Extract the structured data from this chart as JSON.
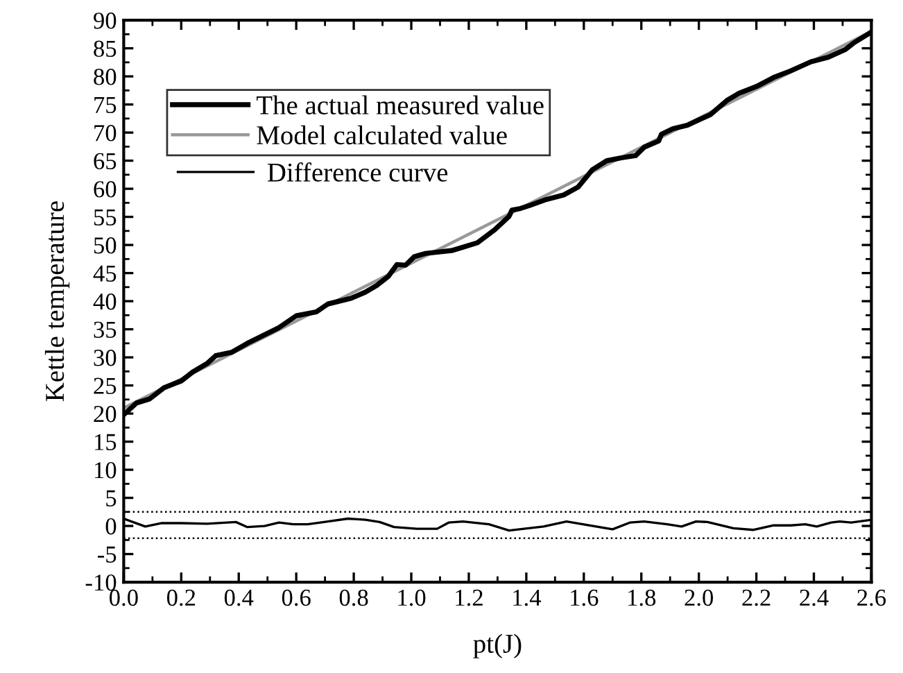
{
  "chart_data": {
    "type": "line",
    "xlabel": "pt(J)",
    "ylabel": "Kettle temperature",
    "xlim": [
      0,
      2.6
    ],
    "xticks": [
      {
        "value": 0,
        "label": "0.0"
      },
      {
        "value": 0.2,
        "label": "0.2"
      },
      {
        "value": 0.4,
        "label": "0.4"
      },
      {
        "value": 0.6,
        "label": "0.6"
      },
      {
        "value": 0.8,
        "label": "0.8"
      },
      {
        "value": 1.0,
        "label": "1.0"
      },
      {
        "value": 1.2,
        "label": "1.2"
      },
      {
        "value": 1.4,
        "label": "1.4"
      },
      {
        "value": 1.6,
        "label": "1.6"
      },
      {
        "value": 1.8,
        "label": "1.8"
      },
      {
        "value": 2.0,
        "label": "2.0"
      },
      {
        "value": 2.2,
        "label": "2.2"
      },
      {
        "value": 2.4,
        "label": "2.4"
      },
      {
        "value": 2.6,
        "label": "2.6"
      }
    ],
    "ylim": [
      -10,
      90
    ],
    "yticks": [
      -10,
      -5,
      0,
      5,
      10,
      15,
      20,
      25,
      30,
      35,
      40,
      45,
      50,
      55,
      60,
      65,
      70,
      75,
      80,
      85,
      90
    ],
    "grid": false,
    "legend": "top left",
    "marker": "none",
    "ref_lines": [
      {
        "axis": "y",
        "value": 2.5,
        "color": "#000000",
        "line_style": "dotted"
      },
      {
        "axis": "y",
        "value": -2.2,
        "color": "#000000",
        "line_style": "dotted"
      }
    ],
    "series": [
      {
        "name": "The actual measured value",
        "color": "#000000",
        "x": [
          0,
          0.045,
          0.09,
          0.14,
          0.2,
          0.24,
          0.29,
          0.32,
          0.375,
          0.43,
          0.54,
          0.6,
          0.67,
          0.71,
          0.79,
          0.84,
          0.88,
          0.92,
          0.95,
          0.98,
          1.01,
          1.05,
          1.14,
          1.18,
          1.23,
          1.29,
          1.34,
          1.35,
          1.38,
          1.41,
          1.47,
          1.53,
          1.58,
          1.63,
          1.68,
          1.73,
          1.78,
          1.81,
          1.86,
          1.87,
          1.91,
          1.96,
          2.04,
          2.1,
          2.14,
          2.2,
          2.26,
          2.32,
          2.39,
          2.45,
          2.51,
          2.54,
          2.6
        ],
        "values": [
          19.8,
          21.9,
          22.6,
          24.6,
          25.8,
          27.4,
          28.9,
          30.3,
          30.9,
          32.5,
          35.3,
          37.4,
          38.1,
          39.5,
          40.5,
          41.6,
          42.8,
          44.4,
          46.5,
          46.4,
          47.9,
          48.5,
          49.0,
          49.6,
          50.4,
          52.7,
          55.1,
          56.2,
          56.5,
          57.0,
          58.1,
          58.9,
          60.3,
          63.4,
          65.0,
          65.5,
          65.9,
          67.4,
          68.5,
          69.7,
          70.7,
          71.3,
          73.2,
          75.8,
          77.0,
          78.2,
          79.8,
          81.0,
          82.6,
          83.4,
          84.8,
          86.0,
          87.9
        ]
      },
      {
        "name": "Model calculated value",
        "color": "#999999",
        "x": [
          0,
          2.6
        ],
        "values": [
          21,
          88
        ]
      },
      {
        "name": "Difference curve",
        "color": "#000000",
        "x": [
          0,
          0.075,
          0.13,
          0.2,
          0.29,
          0.39,
          0.43,
          0.49,
          0.54,
          0.59,
          0.64,
          0.71,
          0.78,
          0.84,
          0.89,
          0.94,
          1.02,
          1.09,
          1.13,
          1.18,
          1.27,
          1.34,
          1.46,
          1.54,
          1.7,
          1.76,
          1.81,
          1.89,
          1.94,
          1.99,
          2.03,
          2.12,
          2.19,
          2.26,
          2.32,
          2.37,
          2.41,
          2.46,
          2.49,
          2.53,
          2.6
        ],
        "values": [
          1.3,
          -0.1,
          0.5,
          0.5,
          0.4,
          0.7,
          -0.2,
          0,
          0.6,
          0.3,
          0.3,
          0.8,
          1.3,
          1.1,
          0.7,
          -0.2,
          -0.5,
          -0.5,
          0.6,
          0.8,
          0.3,
          -0.8,
          -0.1,
          0.8,
          -0.6,
          0.6,
          0.8,
          0.3,
          -0.1,
          0.8,
          0.7,
          -0.4,
          -0.7,
          0.1,
          0.1,
          0.3,
          -0.1,
          0.6,
          0.8,
          0.6,
          1.1
        ]
      }
    ]
  }
}
